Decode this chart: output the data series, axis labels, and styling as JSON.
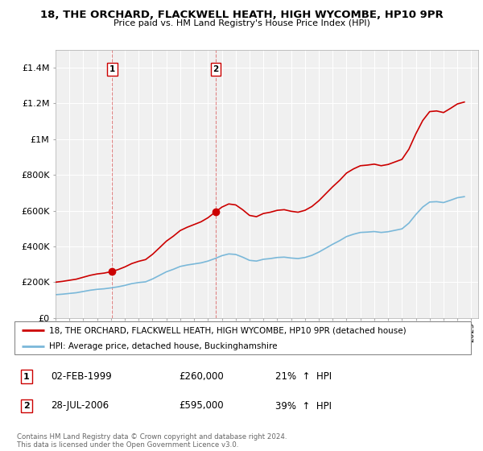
{
  "title": "18, THE ORCHARD, FLACKWELL HEATH, HIGH WYCOMBE, HP10 9PR",
  "subtitle": "Price paid vs. HM Land Registry's House Price Index (HPI)",
  "ylabel_ticks": [
    "£0",
    "£200K",
    "£400K",
    "£600K",
    "£800K",
    "£1M",
    "£1.2M",
    "£1.4M"
  ],
  "ylim": [
    0,
    1500000
  ],
  "yticks": [
    0,
    200000,
    400000,
    600000,
    800000,
    1000000,
    1200000,
    1400000
  ],
  "sale1_date": 1999.09,
  "sale1_price": 260000,
  "sale1_label": "1",
  "sale1_display": "02-FEB-1999",
  "sale1_hpi_pct": "21%",
  "sale2_date": 2006.57,
  "sale2_price": 595000,
  "sale2_label": "2",
  "sale2_display": "28-JUL-2006",
  "sale2_hpi_pct": "39%",
  "hpi_line_color": "#7ab8d9",
  "price_line_color": "#cc0000",
  "vline_color": "#cc0000",
  "vline_alpha": 0.45,
  "background_color": "#f0f0f0",
  "grid_color": "#ffffff",
  "legend_label_red": "18, THE ORCHARD, FLACKWELL HEATH, HIGH WYCOMBE, HP10 9PR (detached house)",
  "legend_label_blue": "HPI: Average price, detached house, Buckinghamshire",
  "footer": "Contains HM Land Registry data © Crown copyright and database right 2024.\nThis data is licensed under the Open Government Licence v3.0.",
  "transaction_box_color": "#cc0000",
  "years_hpi": [
    1995.0,
    1995.5,
    1996.0,
    1996.5,
    1997.0,
    1997.5,
    1998.0,
    1998.5,
    1999.0,
    1999.5,
    2000.0,
    2000.5,
    2001.0,
    2001.5,
    2002.0,
    2002.5,
    2003.0,
    2003.5,
    2004.0,
    2004.5,
    2005.0,
    2005.5,
    2006.0,
    2006.5,
    2007.0,
    2007.5,
    2008.0,
    2008.5,
    2009.0,
    2009.5,
    2010.0,
    2010.5,
    2011.0,
    2011.5,
    2012.0,
    2012.5,
    2013.0,
    2013.5,
    2014.0,
    2014.5,
    2015.0,
    2015.5,
    2016.0,
    2016.5,
    2017.0,
    2017.5,
    2018.0,
    2018.5,
    2019.0,
    2019.5,
    2020.0,
    2020.5,
    2021.0,
    2021.5,
    2022.0,
    2022.5,
    2023.0,
    2023.5,
    2024.0,
    2024.5
  ],
  "hpi_values": [
    130000,
    133000,
    137000,
    141000,
    148000,
    155000,
    160000,
    163000,
    168000,
    174000,
    182000,
    192000,
    198000,
    202000,
    218000,
    238000,
    258000,
    272000,
    288000,
    296000,
    302000,
    308000,
    318000,
    332000,
    348000,
    358000,
    355000,
    340000,
    322000,
    318000,
    328000,
    332000,
    338000,
    340000,
    335000,
    332000,
    338000,
    350000,
    368000,
    390000,
    412000,
    432000,
    455000,
    468000,
    478000,
    480000,
    483000,
    478000,
    482000,
    490000,
    498000,
    530000,
    578000,
    620000,
    648000,
    650000,
    645000,
    658000,
    672000,
    678000
  ]
}
